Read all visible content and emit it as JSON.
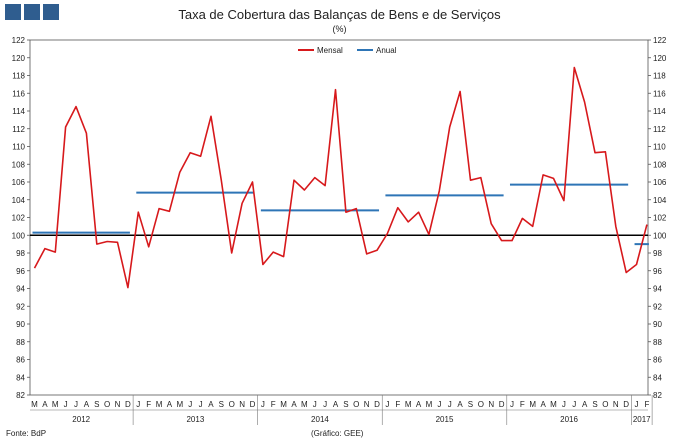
{
  "title": "Taxa de Cobertura das Balanças de Bens e de Serviços",
  "unit": "(%)",
  "footer": {
    "source": "Fonte: BdP",
    "graphic": "(Gráfico: GEE)"
  },
  "colors": {
    "mensal": "#d7191c",
    "anual": "#2e75b6",
    "reference": "#000000",
    "logo": "#2f5d8f"
  },
  "chart_data": {
    "type": "line",
    "title": "Taxa de Cobertura das Balanças de Bens e de Serviços",
    "ylabel": "(%)",
    "ylim": [
      82,
      122
    ],
    "yticks": [
      82,
      84,
      86,
      88,
      90,
      92,
      94,
      96,
      98,
      100,
      102,
      104,
      106,
      108,
      110,
      112,
      114,
      116,
      118,
      120,
      122
    ],
    "reference_line": 100,
    "legend_position": "top-center",
    "month_labels": [
      "M",
      "A",
      "M",
      "J",
      "J",
      "A",
      "S",
      "O",
      "N",
      "D",
      "J",
      "F",
      "M",
      "A",
      "M",
      "J",
      "J",
      "A",
      "S",
      "O",
      "N",
      "D",
      "J",
      "F",
      "M",
      "A",
      "M",
      "J",
      "J",
      "A",
      "S",
      "O",
      "N",
      "D",
      "J",
      "F",
      "M",
      "A",
      "M",
      "J",
      "J",
      "A",
      "S",
      "O",
      "N",
      "D",
      "J",
      "F",
      "M",
      "A",
      "M",
      "J",
      "J",
      "A",
      "S",
      "O",
      "N",
      "D",
      "J",
      "F"
    ],
    "year_labels": [
      {
        "label": "2012",
        "start": 0,
        "end": 9
      },
      {
        "label": "2013",
        "start": 10,
        "end": 21
      },
      {
        "label": "2014",
        "start": 22,
        "end": 33
      },
      {
        "label": "2015",
        "start": 34,
        "end": 45
      },
      {
        "label": "2016",
        "start": 46,
        "end": 57
      },
      {
        "label": "2017",
        "start": 58,
        "end": 59
      }
    ],
    "series": [
      {
        "name": "Mensal",
        "type": "line",
        "values": [
          96.3,
          98.5,
          98.1,
          112.2,
          114.5,
          111.5,
          99.0,
          99.3,
          99.2,
          94.1,
          102.6,
          98.7,
          103.0,
          102.7,
          107.1,
          109.3,
          108.9,
          113.4,
          106.2,
          98.0,
          103.6,
          106.0,
          96.7,
          98.1,
          97.6,
          106.2,
          105.1,
          106.5,
          105.6,
          116.4,
          102.6,
          103.0,
          97.9,
          98.3,
          100.2,
          103.1,
          101.5,
          102.6,
          100.1,
          105.0,
          112.2,
          116.2,
          106.2,
          106.5,
          101.3,
          99.4,
          99.4,
          101.9,
          101.0,
          106.8,
          106.4,
          103.9,
          118.9,
          115.0,
          109.3,
          109.4,
          101.0,
          95.8,
          96.7,
          101.2
        ]
      },
      {
        "name": "Anual",
        "type": "step",
        "segments": [
          {
            "year": "2012",
            "value": 100.3
          },
          {
            "year": "2013",
            "value": 104.8
          },
          {
            "year": "2014",
            "value": 102.8
          },
          {
            "year": "2015",
            "value": 104.5
          },
          {
            "year": "2016",
            "value": 105.7
          },
          {
            "year": "2017",
            "value": 99.0
          }
        ]
      }
    ]
  }
}
